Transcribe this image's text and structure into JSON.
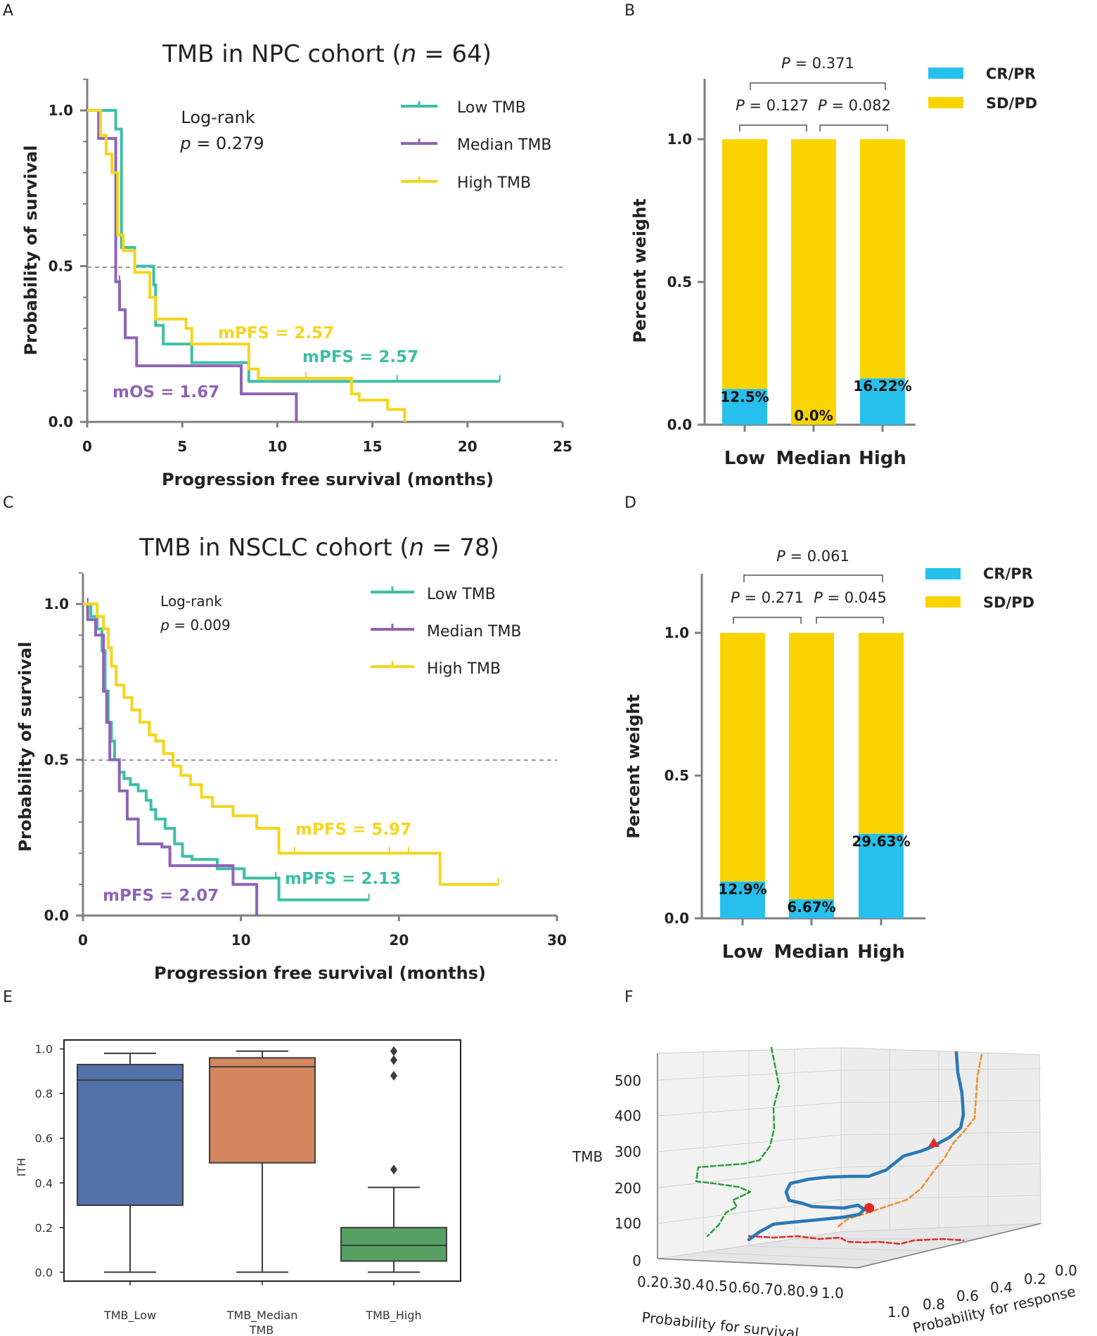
{
  "colors": {
    "low": "#3cbfa6",
    "median": "#8e63b5",
    "high": "#f5d51e",
    "crpr": "#27c0ec",
    "sdpd": "#f9d400",
    "axis": "#7f7f7f",
    "dash": "#999999",
    "box_low": "#5272a9",
    "box_med": "#d4865f",
    "box_high": "#56a064"
  },
  "panel_letters": {
    "a": "A",
    "b": "B",
    "c": "C",
    "d": "D",
    "e": "E",
    "f": "F"
  },
  "chart_data": [
    {
      "id": "A",
      "type": "line",
      "title_prefix": "TMB in NPC cohort (",
      "title_n": "n",
      "title_suffix": " = 64)",
      "xlabel": "Progression free survival (months)",
      "ylabel": "Probability of survival",
      "xlim": [
        0,
        25
      ],
      "ylim": [
        0,
        1
      ],
      "x_ticks": [
        0,
        5,
        10,
        15,
        20,
        25
      ],
      "y_ticks": [
        "0.0",
        "0.5",
        "1.0"
      ],
      "stat_line1": "Log-rank",
      "stat_p": "p",
      "stat_value": " = 0.279",
      "legend": [
        "Low TMB",
        "Median TMB",
        "High TMB"
      ],
      "series": [
        {
          "name": "Low TMB",
          "color": "low",
          "points": [
            [
              0,
              1
            ],
            [
              1.5,
              1
            ],
            [
              1.5,
              0.94
            ],
            [
              1.8,
              0.94
            ],
            [
              1.8,
              0.56
            ],
            [
              2.5,
              0.56
            ],
            [
              2.5,
              0.5
            ],
            [
              3.5,
              0.5
            ],
            [
              3.5,
              0.44
            ],
            [
              3.6,
              0.44
            ],
            [
              3.6,
              0.31
            ],
            [
              4,
              0.31
            ],
            [
              4,
              0.25
            ],
            [
              5.5,
              0.25
            ],
            [
              5.5,
              0.19
            ],
            [
              8.5,
              0.19
            ],
            [
              8.5,
              0.13
            ],
            [
              21.7,
              0.13
            ]
          ],
          "censors": [
            [
              16.3,
              0.13
            ],
            [
              21.7,
              0.13
            ]
          ]
        },
        {
          "name": "Median TMB",
          "color": "median",
          "points": [
            [
              0,
              1
            ],
            [
              0.6,
              1
            ],
            [
              0.6,
              0.91
            ],
            [
              1.5,
              0.91
            ],
            [
              1.5,
              0.45
            ],
            [
              1.7,
              0.45
            ],
            [
              1.7,
              0.36
            ],
            [
              2,
              0.36
            ],
            [
              2,
              0.27
            ],
            [
              2.6,
              0.27
            ],
            [
              2.6,
              0.18
            ],
            [
              8.1,
              0.18
            ],
            [
              8.1,
              0.09
            ],
            [
              11,
              0.09
            ],
            [
              11,
              0
            ]
          ],
          "censors": [
            [
              1.7,
              0.45
            ]
          ]
        },
        {
          "name": "High TMB",
          "color": "high",
          "points": [
            [
              0,
              1
            ],
            [
              0.7,
              1
            ],
            [
              0.7,
              0.92
            ],
            [
              1,
              0.92
            ],
            [
              1,
              0.86
            ],
            [
              1.3,
              0.86
            ],
            [
              1.3,
              0.8
            ],
            [
              1.6,
              0.8
            ],
            [
              1.6,
              0.6
            ],
            [
              1.9,
              0.6
            ],
            [
              1.9,
              0.55
            ],
            [
              2.5,
              0.55
            ],
            [
              2.5,
              0.48
            ],
            [
              3.3,
              0.48
            ],
            [
              3.3,
              0.4
            ],
            [
              3.6,
              0.4
            ],
            [
              3.6,
              0.33
            ],
            [
              5.2,
              0.33
            ],
            [
              5.2,
              0.3
            ],
            [
              5.5,
              0.3
            ],
            [
              5.5,
              0.25
            ],
            [
              8.5,
              0.25
            ],
            [
              8.5,
              0.17
            ],
            [
              9,
              0.17
            ],
            [
              9,
              0.14
            ],
            [
              13.9,
              0.14
            ],
            [
              13.9,
              0.09
            ],
            [
              14.3,
              0.09
            ],
            [
              14.3,
              0.07
            ],
            [
              15.8,
              0.07
            ],
            [
              15.8,
              0.04
            ],
            [
              16.7,
              0.04
            ],
            [
              16.7,
              0
            ]
          ],
          "censors": [
            [
              11.5,
              0.14
            ]
          ]
        }
      ],
      "annotations": [
        {
          "text": "mPFS = 2.57",
          "color": "high"
        },
        {
          "text": "mPFS = 2.57",
          "color": "low"
        },
        {
          "text": "mOS = 1.67",
          "color": "median"
        }
      ]
    },
    {
      "id": "B",
      "type": "bar",
      "categories": [
        "Low",
        "Median",
        "High"
      ],
      "ylabel": "Percent weight",
      "ylim": [
        0,
        1.2
      ],
      "y_ticks": [
        "0.0",
        "0.5",
        "1.0"
      ],
      "series": [
        {
          "name": "CR/PR",
          "values": [
            0.125,
            0.0,
            0.1622
          ]
        },
        {
          "name": "SD/PD",
          "values": [
            0.875,
            1.0,
            0.8378
          ]
        }
      ],
      "data_labels": [
        "12.5%",
        "0.0%",
        "16.22%"
      ],
      "legend": [
        "CR/PR",
        "SD/PD"
      ],
      "p_values": [
        {
          "italic": "P",
          "text": " = 0.371"
        },
        {
          "italic": "P",
          "text": " = 0.127"
        },
        {
          "italic": "P",
          "text": " = 0.082"
        }
      ]
    },
    {
      "id": "C",
      "type": "line",
      "title_prefix": "TMB in NSCLC cohort (",
      "title_n": "n",
      "title_suffix": " = 78)",
      "xlabel": "Progression free  survival (months)",
      "ylabel": "Probability of survival",
      "xlim": [
        0,
        30
      ],
      "ylim": [
        0,
        1
      ],
      "x_ticks": [
        0,
        10,
        20,
        30
      ],
      "y_ticks": [
        "0.0",
        "0.5",
        "1.0"
      ],
      "stat_line1": "Log-rank",
      "stat_p": "p",
      "stat_value": " = 0.009",
      "legend": [
        "Low TMB",
        "Median TMB",
        "High TMB"
      ],
      "series": [
        {
          "name": "Low TMB",
          "color": "low",
          "points": [
            [
              0,
              1
            ],
            [
              0.5,
              1
            ],
            [
              0.5,
              0.96
            ],
            [
              0.9,
              0.96
            ],
            [
              0.9,
              0.92
            ],
            [
              1.2,
              0.92
            ],
            [
              1.2,
              0.85
            ],
            [
              1.4,
              0.85
            ],
            [
              1.4,
              0.72
            ],
            [
              1.6,
              0.72
            ],
            [
              1.6,
              0.62
            ],
            [
              1.8,
              0.62
            ],
            [
              1.8,
              0.56
            ],
            [
              2,
              0.56
            ],
            [
              2,
              0.5
            ],
            [
              2.3,
              0.5
            ],
            [
              2.3,
              0.46
            ],
            [
              2.6,
              0.46
            ],
            [
              2.6,
              0.44
            ],
            [
              3,
              0.44
            ],
            [
              3,
              0.42
            ],
            [
              3.5,
              0.42
            ],
            [
              3.5,
              0.4
            ],
            [
              4,
              0.4
            ],
            [
              4,
              0.37
            ],
            [
              4.3,
              0.37
            ],
            [
              4.3,
              0.34
            ],
            [
              4.6,
              0.34
            ],
            [
              4.6,
              0.31
            ],
            [
              5.2,
              0.31
            ],
            [
              5.2,
              0.28
            ],
            [
              5.8,
              0.28
            ],
            [
              5.8,
              0.23
            ],
            [
              6.3,
              0.23
            ],
            [
              6.3,
              0.19
            ],
            [
              6.9,
              0.19
            ],
            [
              6.9,
              0.18
            ],
            [
              8.5,
              0.18
            ],
            [
              8.5,
              0.15
            ],
            [
              10.2,
              0.15
            ],
            [
              10.2,
              0.12
            ],
            [
              12.4,
              0.12
            ],
            [
              12.4,
              0.05
            ],
            [
              18.1,
              0.05
            ]
          ],
          "censors": [
            [
              12.2,
              0.12
            ],
            [
              18.1,
              0.05
            ]
          ]
        },
        {
          "name": "Median TMB",
          "color": "median",
          "points": [
            [
              0,
              1
            ],
            [
              0.3,
              1
            ],
            [
              0.3,
              0.95
            ],
            [
              0.8,
              0.95
            ],
            [
              0.8,
              0.9
            ],
            [
              1.3,
              0.9
            ],
            [
              1.3,
              0.72
            ],
            [
              1.5,
              0.72
            ],
            [
              1.5,
              0.62
            ],
            [
              1.7,
              0.62
            ],
            [
              1.7,
              0.5
            ],
            [
              2.3,
              0.5
            ],
            [
              2.3,
              0.4
            ],
            [
              2.8,
              0.4
            ],
            [
              2.8,
              0.31
            ],
            [
              3.5,
              0.31
            ],
            [
              3.5,
              0.23
            ],
            [
              5,
              0.23
            ],
            [
              5,
              0.22
            ],
            [
              5.5,
              0.22
            ],
            [
              5.5,
              0.16
            ],
            [
              9.5,
              0.16
            ],
            [
              9.5,
              0.1
            ],
            [
              11,
              0.1
            ],
            [
              11,
              0
            ]
          ],
          "censors": [
            [
              0.3,
              1
            ]
          ]
        },
        {
          "name": "High TMB",
          "color": "high",
          "points": [
            [
              0,
              1
            ],
            [
              0.9,
              1
            ],
            [
              0.9,
              0.96
            ],
            [
              1.3,
              0.96
            ],
            [
              1.3,
              0.92
            ],
            [
              1.6,
              0.92
            ],
            [
              1.6,
              0.86
            ],
            [
              1.8,
              0.86
            ],
            [
              1.8,
              0.8
            ],
            [
              2.1,
              0.8
            ],
            [
              2.1,
              0.74
            ],
            [
              2.6,
              0.74
            ],
            [
              2.6,
              0.7
            ],
            [
              3.1,
              0.7
            ],
            [
              3.1,
              0.66
            ],
            [
              3.6,
              0.66
            ],
            [
              3.6,
              0.62
            ],
            [
              4.2,
              0.62
            ],
            [
              4.2,
              0.58
            ],
            [
              4.6,
              0.58
            ],
            [
              4.6,
              0.56
            ],
            [
              5.1,
              0.56
            ],
            [
              5.1,
              0.52
            ],
            [
              5.7,
              0.52
            ],
            [
              5.7,
              0.48
            ],
            [
              6.2,
              0.48
            ],
            [
              6.2,
              0.45
            ],
            [
              6.8,
              0.45
            ],
            [
              6.8,
              0.42
            ],
            [
              7.5,
              0.42
            ],
            [
              7.5,
              0.38
            ],
            [
              8.2,
              0.38
            ],
            [
              8.2,
              0.35
            ],
            [
              9.5,
              0.35
            ],
            [
              9.5,
              0.32
            ],
            [
              11,
              0.32
            ],
            [
              11,
              0.28
            ],
            [
              12.4,
              0.28
            ],
            [
              12.4,
              0.2
            ],
            [
              22.6,
              0.2
            ],
            [
              22.6,
              0.1
            ],
            [
              26.3,
              0.1
            ]
          ],
          "censors": [
            [
              13.4,
              0.2
            ],
            [
              19.4,
              0.2
            ],
            [
              20.6,
              0.2
            ],
            [
              26.3,
              0.1
            ]
          ]
        }
      ],
      "annotations": [
        {
          "text": "mPFS = 5.97",
          "color": "high"
        },
        {
          "text": "mPFS = 2.13",
          "color": "low"
        },
        {
          "text": "mPFS = 2.07",
          "color": "median"
        }
      ]
    },
    {
      "id": "D",
      "type": "bar",
      "categories": [
        "Low",
        "Median",
        "High"
      ],
      "ylabel": "Percent weight",
      "ylim": [
        0,
        1.2
      ],
      "y_ticks": [
        "0.0",
        "0.5",
        "1.0"
      ],
      "series": [
        {
          "name": "CR/PR",
          "values": [
            0.129,
            0.0667,
            0.2963
          ]
        },
        {
          "name": "SD/PD",
          "values": [
            0.871,
            0.9333,
            0.7037
          ]
        }
      ],
      "data_labels": [
        "12.9%",
        "6.67%",
        "29.63%"
      ],
      "legend": [
        "CR/PR",
        "SD/PD"
      ],
      "p_values": [
        {
          "italic": "P",
          "text": " = 0.061"
        },
        {
          "italic": "P",
          "text": " = 0.271"
        },
        {
          "italic": "P",
          "text": " = 0.045"
        }
      ]
    },
    {
      "id": "E",
      "type": "box",
      "categories": [
        "TMB_Low",
        "TMB_Median",
        "TMB_High"
      ],
      "xlabel": "TMB",
      "ylabel": "ITH",
      "ylim": [
        -0.04,
        1.04
      ],
      "y_ticks": [
        "0.0",
        "0.2",
        "0.4",
        "0.6",
        "0.8",
        "1.0"
      ],
      "boxes": [
        {
          "min": 0.0,
          "q1": 0.3,
          "median": 0.86,
          "q3": 0.93,
          "max": 0.98,
          "outliers": []
        },
        {
          "min": 0.0,
          "q1": 0.49,
          "median": 0.92,
          "q3": 0.96,
          "max": 0.99,
          "outliers": []
        },
        {
          "min": 0.0,
          "q1": 0.05,
          "median": 0.12,
          "q3": 0.2,
          "max": 0.38,
          "outliers": [
            0.46,
            0.88,
            0.95,
            0.99
          ]
        }
      ]
    },
    {
      "id": "F",
      "type": "line3d",
      "zlabel": "TMB",
      "xlabel": "Probability for survival",
      "ylabel": "Probability for response",
      "z_ticks": [
        "0",
        "100",
        "200",
        "300",
        "400",
        "500"
      ],
      "x_ticks": [
        "0.2",
        "0.3",
        "0.4",
        "0.5",
        "0.6",
        "0.7",
        "0.8",
        "0.9",
        "1.0"
      ],
      "y_ticks": [
        "1.0",
        "0.8",
        "0.6",
        "0.4",
        "0.2",
        "0.0"
      ]
    }
  ]
}
